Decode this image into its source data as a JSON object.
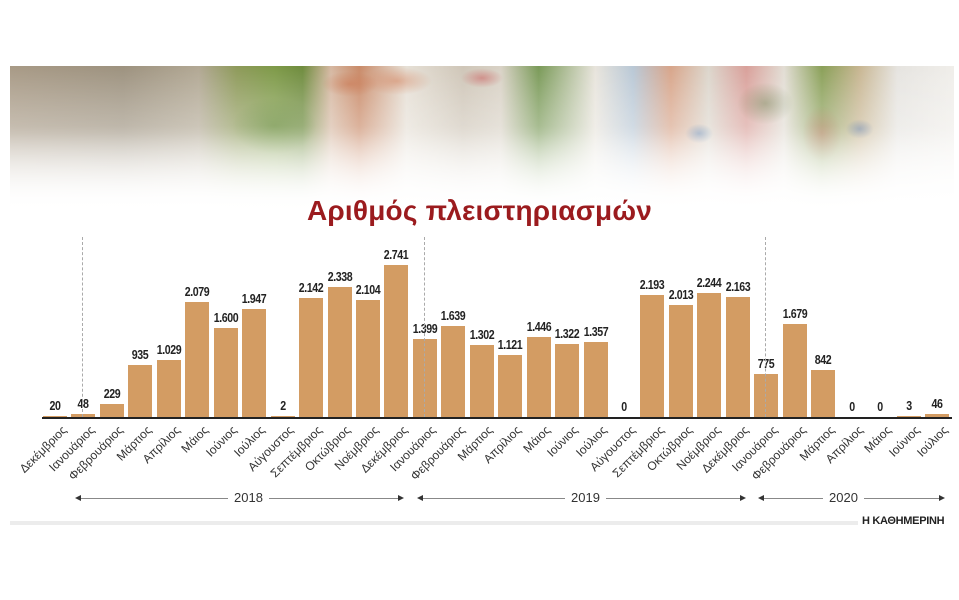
{
  "header": {
    "title": "Αριθμός πλειστηριασμών",
    "title_color": "#9b1b1e"
  },
  "credit": "Η ΚΑΘΗΜΕΡΙΝΗ",
  "bar_color": "#d39c63",
  "years": [
    {
      "label": "2018"
    },
    {
      "label": "2019"
    },
    {
      "label": "2020"
    }
  ],
  "chart_data": {
    "type": "bar",
    "title": "Αριθμός πλειστηριασμών",
    "xlabel": "",
    "ylabel": "",
    "ylim": [
      0,
      2741
    ],
    "grid": false,
    "categories": [
      "Δεκέμβριος",
      "Ιανουάριος",
      "Φεβρουάριος",
      "Μάρτιος",
      "Απρίλιος",
      "Μάιος",
      "Ιούνιος",
      "Ιούλιος",
      "Αύγουστος",
      "Σεπτέμβριος",
      "Οκτώβριος",
      "Νοέμβριος",
      "Δεκέμβριος",
      "Ιανουάριος",
      "Φεβρουάριος",
      "Μάρτιος",
      "Απρίλιος",
      "Μάιος",
      "Ιούνιος",
      "Ιούλιος",
      "Αύγουστος",
      "Σεπτέμβριος",
      "Οκτώβριος",
      "Νοέμβριος",
      "Δεκέμβριος",
      "Ιανουάριος",
      "Φεβρουάριος",
      "Μάρτιος",
      "Απρίλιος",
      "Μάιος",
      "Ιούνιος",
      "Ιούλιος"
    ],
    "values": [
      20,
      48,
      229,
      935,
      1029,
      2079,
      1600,
      1947,
      2,
      2142,
      2338,
      2104,
      2741,
      1399,
      1639,
      1302,
      1121,
      1446,
      1322,
      1357,
      0,
      2193,
      2013,
      2244,
      2163,
      775,
      1679,
      842,
      0,
      0,
      3,
      46
    ],
    "value_labels": [
      "20",
      "48",
      "229",
      "935",
      "1.029",
      "2.079",
      "1.600",
      "1.947",
      "2",
      "2.142",
      "2.338",
      "2.104",
      "2.741",
      "1.399",
      "1.639",
      "1.302",
      "1.121",
      "1.446",
      "1.322",
      "1.357",
      "0",
      "2.193",
      "2.013",
      "2.244",
      "2.163",
      "775",
      "1.679",
      "842",
      "0",
      "0",
      "3",
      "46"
    ],
    "year_groups": [
      {
        "year": "2018",
        "from": "Ιανουάριος",
        "to": "Δεκέμβριος"
      },
      {
        "year": "2019",
        "from": "Ιανουάριος",
        "to": "Δεκέμβριος"
      },
      {
        "year": "2020",
        "from": "Ιανουάριος",
        "to": "Ιούλιος"
      }
    ]
  }
}
